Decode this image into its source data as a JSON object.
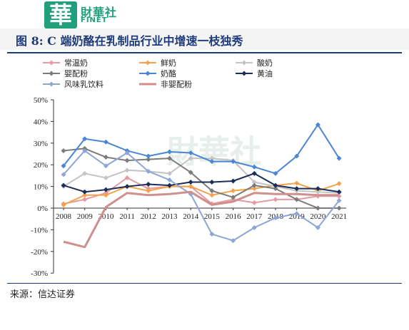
{
  "brand": {
    "name": "財華社",
    "sub": "FINET",
    "logo_glyph": "華",
    "color": "#1f9f7c"
  },
  "title": "图 8: C 端奶酪在乳制品行业中增速一枝独秀",
  "source": "来源：信达证券",
  "watermark": "財華社",
  "chart_data": {
    "type": "line",
    "title": "图 8: C 端奶酪在乳制品行业中增速一枝独秀",
    "xlabel": "",
    "ylabel": "",
    "x": [
      "2008",
      "2009",
      "2010",
      "2011",
      "2012",
      "2013",
      "2014",
      "2015",
      "2016",
      "2017",
      "2018",
      "2019",
      "2020",
      "2021"
    ],
    "y_ticks": [
      "50%",
      "40%",
      "30%",
      "20%",
      "10%",
      "0%",
      "-10%",
      "-20%",
      "-30%"
    ],
    "ylim": [
      -0.3,
      0.5
    ],
    "grid": false,
    "legend_position": "top",
    "series": [
      {
        "name": "常温奶",
        "color": "#e69aa3",
        "marker": "diamond",
        "values": [
          0.02,
          0.04,
          0.07,
          0.14,
          0.09,
          0.1,
          0.1,
          0.02,
          0.04,
          0.025,
          0.04,
          0.04,
          0.055,
          0.055
        ]
      },
      {
        "name": "鲜奶",
        "color": "#f5a24a",
        "marker": "diamond",
        "values": [
          0.015,
          0.06,
          0.06,
          0.1,
          0.08,
          0.1,
          0.1,
          0.06,
          0.08,
          0.09,
          0.105,
          0.115,
          0.08,
          0.113
        ]
      },
      {
        "name": "酸奶",
        "color": "#c4c4c4",
        "marker": "diamond",
        "values": [
          0.1,
          0.16,
          0.14,
          0.175,
          0.17,
          0.16,
          0.23,
          0.23,
          0.22,
          0.12,
          0.1,
          0.08,
          0.075,
          0.07
        ]
      },
      {
        "name": "婴配粉",
        "color": "#7b7b7b",
        "marker": "diamond",
        "values": [
          0.265,
          0.275,
          0.235,
          0.22,
          0.225,
          0.23,
          0.165,
          0.08,
          0.05,
          0.105,
          0.09,
          0.04,
          0.0,
          0.0
        ]
      },
      {
        "name": "奶酪",
        "color": "#4a86d6",
        "marker": "diamond",
        "values": [
          0.195,
          0.32,
          0.305,
          0.265,
          0.24,
          0.26,
          0.255,
          0.215,
          0.215,
          0.19,
          0.16,
          0.24,
          0.385,
          0.23
        ]
      },
      {
        "name": "黄油",
        "color": "#1b2e58",
        "marker": "diamond",
        "values": [
          0.105,
          0.075,
          0.085,
          0.1,
          0.11,
          0.105,
          0.12,
          0.12,
          0.125,
          0.16,
          0.105,
          0.09,
          0.09,
          0.075
        ]
      },
      {
        "name": "风味乳饮料",
        "color": "#8ea6d6",
        "marker": "diamond",
        "values": [
          0.155,
          0.265,
          0.195,
          0.255,
          0.17,
          0.13,
          0.065,
          -0.12,
          -0.15,
          -0.09,
          -0.045,
          -0.025,
          -0.09,
          0.035
        ]
      },
      {
        "name": "非婴配粉",
        "color": "#cf8f8f",
        "marker": "none",
        "values": [
          -0.155,
          -0.18,
          0.005,
          0.07,
          0.06,
          0.065,
          0.075,
          0.015,
          0.03,
          0.07,
          0.065,
          0.065,
          0.06,
          0.06
        ]
      }
    ]
  }
}
